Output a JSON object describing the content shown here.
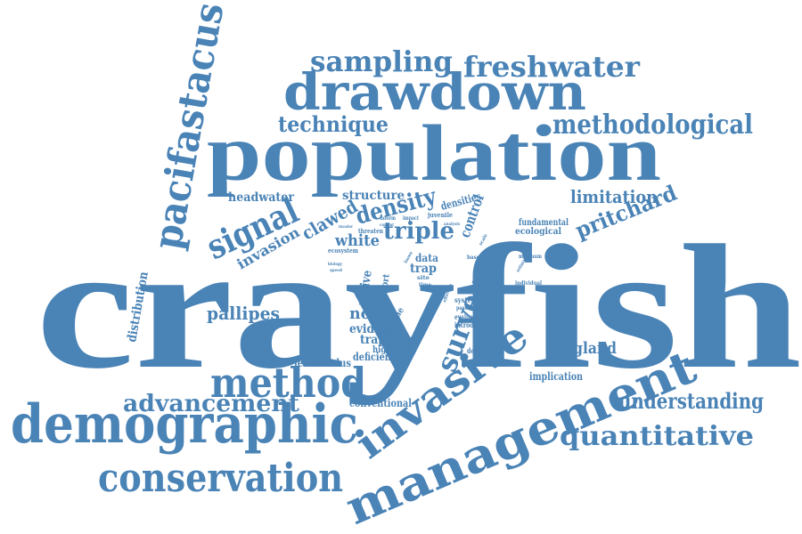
{
  "theme": {
    "word_color": "#4a83b6",
    "background": "#ffffff"
  },
  "words": {
    "crayfish": "crayfish",
    "population": "population",
    "drawdown": "drawdown",
    "demographic": "demographic",
    "management": "management",
    "invasive": "invasive",
    "pacifastacus": "pacifastacus",
    "conservation": "conservation",
    "method": "method",
    "methodological": "methodological",
    "freshwater": "freshwater",
    "sampling": "sampling",
    "signal": "signal",
    "survey": "survey",
    "quantitative": "quantitative",
    "advancement": "advancement",
    "understanding": "understanding",
    "pritchard": "pritchard",
    "technique": "technique",
    "density": "density",
    "triple": "triple",
    "clawed": "clawed",
    "white": "white",
    "pallipes": "pallipes",
    "distribution": "distribution",
    "limitation": "limitation",
    "invasion": "invasion",
    "england": "england",
    "headwater": "headwater",
    "structure": "structure",
    "native": "native",
    "novel": "novel",
    "evidence": "evidence",
    "trapping": "trapping",
    "deficiencies": "deficiencies",
    "leniusculus": "leniusculus",
    "conventional": "conventional",
    "implication": "implication",
    "control": "control",
    "densities": "densities",
    "data": "data",
    "trap": "trap",
    "fundamental": "fundamental",
    "ecological": "ecological",
    "highlight": "highlight",
    "decline": "decline",
    "deployment": "deployment",
    "evaluation": "evaluation",
    "introduce": "introduce",
    "system": "system",
    "effort": "effort",
    "ecosystem": "ecosystem",
    "juvenile": "juvenile",
    "threaten": "threaten",
    "minimum": "minimum",
    "individual": "individual",
    "based": "based",
    "site": "site",
    "time": "time",
    "inform": "inform",
    "impact": "impact",
    "analysis": "analysis",
    "current": "current",
    "invader": "invader",
    "biology": "biology",
    "speed": "speed",
    "passive": "passive",
    "effective": "effective",
    "estimate": "estimate",
    "scale": "scale",
    "robust": "robust",
    "known": "known"
  }
}
